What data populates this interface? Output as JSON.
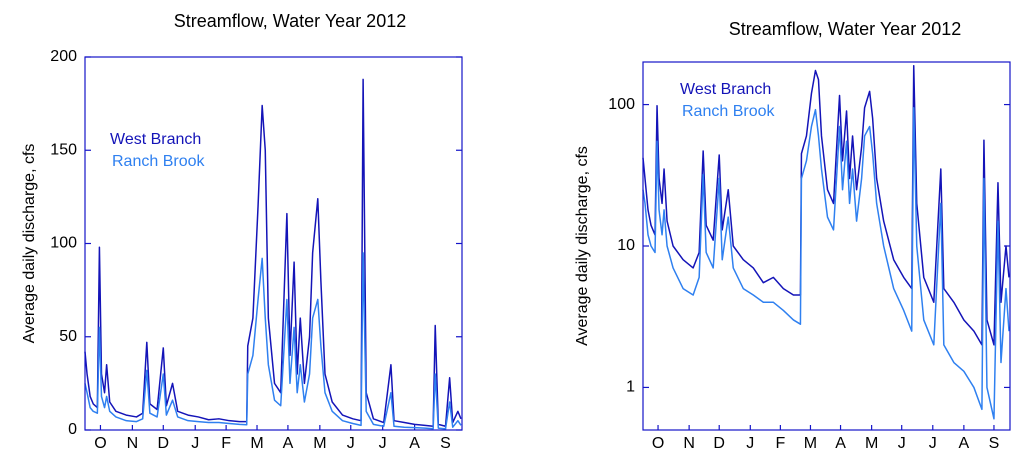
{
  "chart_data": [
    {
      "type": "line",
      "title": "Streamflow, Water Year 2012",
      "y_label": "Average daily discharge, cfs",
      "x": [
        0,
        2,
        5,
        8,
        12,
        14,
        16,
        19,
        21,
        24,
        30,
        40,
        50,
        56,
        60,
        63,
        70,
        76,
        79,
        85,
        90,
        100,
        110,
        120,
        130,
        140,
        150,
        157,
        158,
        163,
        168,
        172,
        175,
        178,
        184,
        190,
        196,
        199,
        203,
        206,
        209,
        213,
        218,
        221,
        226,
        229,
        233,
        240,
        250,
        260,
        268,
        270,
        273,
        280,
        290,
        297,
        300,
        310,
        320,
        330,
        338,
        340,
        343,
        350,
        354,
        357,
        362,
        365
      ],
      "xlim": [
        0,
        366
      ],
      "xticks": [
        {
          "value": 15,
          "label": "O"
        },
        {
          "value": 46,
          "label": "N"
        },
        {
          "value": 76,
          "label": "D"
        },
        {
          "value": 107,
          "label": "J"
        },
        {
          "value": 137,
          "label": "F"
        },
        {
          "value": 167,
          "label": "M"
        },
        {
          "value": 197,
          "label": "A"
        },
        {
          "value": 228,
          "label": "M"
        },
        {
          "value": 258,
          "label": "J"
        },
        {
          "value": 289,
          "label": "J"
        },
        {
          "value": 320,
          "label": "A"
        },
        {
          "value": 350,
          "label": "S"
        }
      ],
      "ylim": [
        0,
        200
      ],
      "yticks": [
        0,
        50,
        100,
        150,
        200
      ],
      "log_y": false,
      "series": [
        {
          "name": "West Branch",
          "color": "#1414b8",
          "values": [
            42,
            30,
            18,
            14,
            12,
            98,
            30,
            20,
            35,
            15,
            10,
            8,
            7,
            9,
            47,
            14,
            11,
            44,
            13,
            25,
            10,
            8,
            7,
            5.5,
            6,
            5,
            4.5,
            4.5,
            45,
            60,
            120,
            174,
            150,
            60,
            25,
            20,
            116,
            40,
            90,
            30,
            60,
            25,
            50,
            95,
            124,
            80,
            30,
            15,
            8,
            6,
            5,
            188,
            20,
            6,
            4,
            35,
            5,
            4,
            3,
            2.5,
            2,
            56,
            3,
            2,
            28,
            4,
            10,
            6
          ]
        },
        {
          "name": "Ranch Brook",
          "color": "#2f80f0",
          "values": [
            25,
            20,
            12,
            10,
            9,
            55,
            18,
            12,
            18,
            10,
            7,
            5,
            4.5,
            6,
            32,
            9,
            7,
            30,
            8,
            16,
            7,
            5,
            4.5,
            4,
            4,
            3.5,
            3,
            2.8,
            30,
            40,
            70,
            92,
            60,
            35,
            16,
            13,
            70,
            25,
            55,
            20,
            35,
            15,
            30,
            60,
            70,
            45,
            20,
            10,
            5,
            3.5,
            2.5,
            95,
            10,
            3,
            2,
            20,
            2,
            1.5,
            1.3,
            1,
            0.7,
            30,
            1,
            0.6,
            15,
            1.5,
            5,
            2.5
          ]
        }
      ]
    },
    {
      "type": "line",
      "title": "Streamflow, Water Year 2012",
      "y_label": "Average daily discharge, cfs",
      "x": [
        0,
        2,
        5,
        8,
        12,
        14,
        16,
        19,
        21,
        24,
        30,
        40,
        50,
        56,
        60,
        63,
        70,
        76,
        79,
        85,
        90,
        100,
        110,
        120,
        130,
        140,
        150,
        157,
        158,
        163,
        168,
        172,
        175,
        178,
        184,
        190,
        196,
        199,
        203,
        206,
        209,
        213,
        218,
        221,
        226,
        229,
        233,
        240,
        250,
        260,
        268,
        270,
        273,
        280,
        290,
        297,
        300,
        310,
        320,
        330,
        338,
        340,
        343,
        350,
        354,
        357,
        362,
        365
      ],
      "xlim": [
        0,
        366
      ],
      "xticks": [
        {
          "value": 15,
          "label": "O"
        },
        {
          "value": 46,
          "label": "N"
        },
        {
          "value": 76,
          "label": "D"
        },
        {
          "value": 107,
          "label": "J"
        },
        {
          "value": 137,
          "label": "F"
        },
        {
          "value": 167,
          "label": "M"
        },
        {
          "value": 197,
          "label": "A"
        },
        {
          "value": 228,
          "label": "M"
        },
        {
          "value": 258,
          "label": "J"
        },
        {
          "value": 289,
          "label": "J"
        },
        {
          "value": 320,
          "label": "A"
        },
        {
          "value": 350,
          "label": "S"
        }
      ],
      "ylim": [
        0.5,
        200
      ],
      "yticks": [
        1,
        10,
        100
      ],
      "log_y": true,
      "series": [
        {
          "name": "West Branch",
          "color": "#1414b8",
          "values": [
            42,
            30,
            18,
            14,
            12,
            98,
            30,
            20,
            35,
            15,
            10,
            8,
            7,
            9,
            47,
            14,
            11,
            44,
            13,
            25,
            10,
            8,
            7,
            5.5,
            6,
            5,
            4.5,
            4.5,
            45,
            60,
            120,
            174,
            150,
            60,
            25,
            20,
            116,
            40,
            90,
            30,
            60,
            25,
            50,
            95,
            124,
            80,
            30,
            15,
            8,
            6,
            5,
            188,
            20,
            6,
            4,
            35,
            5,
            4,
            3,
            2.5,
            2,
            56,
            3,
            2,
            28,
            4,
            10,
            6
          ]
        },
        {
          "name": "Ranch Brook",
          "color": "#2f80f0",
          "values": [
            25,
            20,
            12,
            10,
            9,
            55,
            18,
            12,
            18,
            10,
            7,
            5,
            4.5,
            6,
            32,
            9,
            7,
            30,
            8,
            16,
            7,
            5,
            4.5,
            4,
            4,
            3.5,
            3,
            2.8,
            30,
            40,
            70,
            92,
            60,
            35,
            16,
            13,
            70,
            25,
            55,
            20,
            35,
            15,
            30,
            60,
            70,
            45,
            20,
            10,
            5,
            3.5,
            2.5,
            95,
            10,
            3,
            2,
            20,
            2,
            1.5,
            1.3,
            1,
            0.7,
            30,
            1,
            0.6,
            15,
            1.5,
            5,
            2.5
          ]
        }
      ]
    }
  ]
}
